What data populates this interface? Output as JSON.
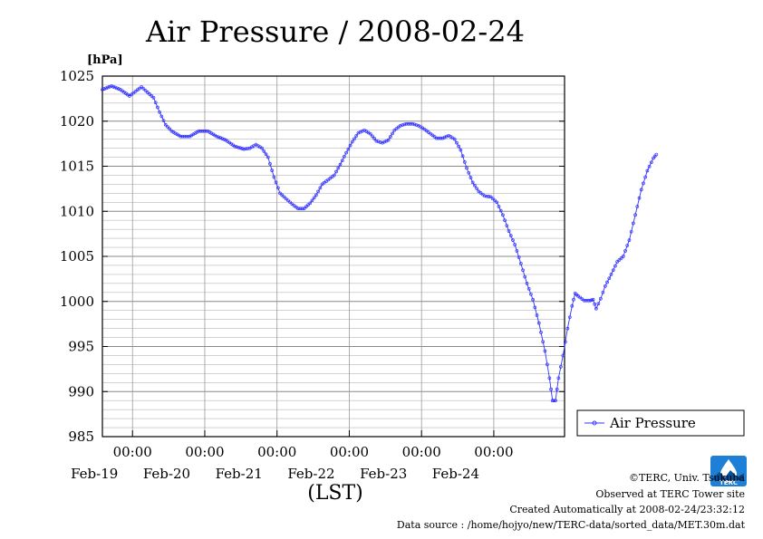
{
  "chart_data": {
    "type": "line",
    "title": "Air Pressure / 2008-02-24",
    "ylabel": "[hPa]",
    "xlabel": "(LST)",
    "ylim": [
      985,
      1025
    ],
    "y_ticks": [
      985,
      990,
      995,
      1000,
      1005,
      1010,
      1015,
      1020,
      1025
    ],
    "y_grid_step": 1,
    "grid": true,
    "x_range_days": [
      "2008-02-18T14:00",
      "2008-02-24T23:30"
    ],
    "x_ticks": [
      {
        "time": "2008-02-19T00:00",
        "hour_label": "00:00",
        "day_label": "Feb-19"
      },
      {
        "time": "2008-02-20T00:00",
        "hour_label": "00:00",
        "day_label": "Feb-20"
      },
      {
        "time": "2008-02-21T00:00",
        "hour_label": "00:00",
        "day_label": "Feb-21"
      },
      {
        "time": "2008-02-22T00:00",
        "hour_label": "00:00",
        "day_label": "Feb-22"
      },
      {
        "time": "2008-02-23T00:00",
        "hour_label": "00:00",
        "day_label": "Feb-23"
      },
      {
        "time": "2008-02-24T00:00",
        "hour_label": "00:00",
        "day_label": "Feb-24"
      }
    ],
    "legend_position": "right",
    "series": [
      {
        "name": "Air Pressure",
        "color": "#3333ff",
        "marker": "circle",
        "points": [
          [
            "2008-02-18T14:00",
            1023.5
          ],
          [
            "2008-02-18T17:00",
            1023.9
          ],
          [
            "2008-02-18T20:00",
            1023.5
          ],
          [
            "2008-02-18T23:00",
            1022.8
          ],
          [
            "2008-02-19T01:00",
            1023.3
          ],
          [
            "2008-02-19T03:00",
            1023.8
          ],
          [
            "2008-02-19T05:00",
            1023.2
          ],
          [
            "2008-02-19T07:00",
            1022.6
          ],
          [
            "2008-02-19T09:00",
            1021.0
          ],
          [
            "2008-02-19T11:00",
            1019.6
          ],
          [
            "2008-02-19T13:00",
            1018.9
          ],
          [
            "2008-02-19T16:00",
            1018.3
          ],
          [
            "2008-02-19T19:00",
            1018.3
          ],
          [
            "2008-02-19T22:00",
            1018.9
          ],
          [
            "2008-02-20T01:00",
            1018.9
          ],
          [
            "2008-02-20T04:00",
            1018.3
          ],
          [
            "2008-02-20T07:00",
            1017.9
          ],
          [
            "2008-02-20T10:00",
            1017.2
          ],
          [
            "2008-02-20T13:00",
            1016.9
          ],
          [
            "2008-02-20T15:00",
            1017.0
          ],
          [
            "2008-02-20T17:00",
            1017.4
          ],
          [
            "2008-02-20T19:00",
            1017.0
          ],
          [
            "2008-02-20T21:00",
            1016.0
          ],
          [
            "2008-02-20T23:00",
            1013.8
          ],
          [
            "2008-02-21T01:00",
            1012.0
          ],
          [
            "2008-02-21T03:00",
            1011.4
          ],
          [
            "2008-02-21T05:00",
            1010.8
          ],
          [
            "2008-02-21T07:00",
            1010.3
          ],
          [
            "2008-02-21T09:00",
            1010.3
          ],
          [
            "2008-02-21T11:00",
            1010.9
          ],
          [
            "2008-02-21T13:00",
            1011.8
          ],
          [
            "2008-02-21T15:00",
            1013.0
          ],
          [
            "2008-02-21T17:00",
            1013.5
          ],
          [
            "2008-02-21T19:00",
            1014.0
          ],
          [
            "2008-02-21T21:00",
            1015.2
          ],
          [
            "2008-02-21T23:00",
            1016.5
          ],
          [
            "2008-02-22T01:00",
            1017.7
          ],
          [
            "2008-02-22T03:00",
            1018.7
          ],
          [
            "2008-02-22T05:00",
            1019.0
          ],
          [
            "2008-02-22T07:00",
            1018.6
          ],
          [
            "2008-02-22T09:00",
            1017.8
          ],
          [
            "2008-02-22T11:00",
            1017.6
          ],
          [
            "2008-02-22T13:00",
            1017.9
          ],
          [
            "2008-02-22T15:00",
            1019.0
          ],
          [
            "2008-02-22T17:00",
            1019.5
          ],
          [
            "2008-02-22T19:00",
            1019.7
          ],
          [
            "2008-02-22T21:00",
            1019.7
          ],
          [
            "2008-02-22T23:00",
            1019.5
          ],
          [
            "2008-02-23T01:00",
            1019.1
          ],
          [
            "2008-02-23T03:00",
            1018.6
          ],
          [
            "2008-02-23T05:00",
            1018.1
          ],
          [
            "2008-02-23T07:00",
            1018.1
          ],
          [
            "2008-02-23T09:00",
            1018.4
          ],
          [
            "2008-02-23T11:00",
            1018.0
          ],
          [
            "2008-02-23T13:00",
            1016.8
          ],
          [
            "2008-02-23T15:00",
            1014.8
          ],
          [
            "2008-02-23T17:00",
            1013.2
          ],
          [
            "2008-02-23T19:00",
            1012.2
          ],
          [
            "2008-02-23T21:00",
            1011.7
          ],
          [
            "2008-02-23T23:00",
            1011.6
          ],
          [
            "2008-02-24T01:00",
            1011.0
          ],
          [
            "2008-02-24T03:00",
            1009.6
          ],
          [
            "2008-02-24T05:00",
            1007.8
          ],
          [
            "2008-02-24T07:00",
            1006.3
          ],
          [
            "2008-02-24T09:00",
            1004.2
          ],
          [
            "2008-02-24T11:00",
            1002.0
          ],
          [
            "2008-02-24T13:00",
            1000.2
          ],
          [
            "2008-02-24T15:00",
            997.6
          ],
          [
            "2008-02-24T17:00",
            994.5
          ],
          [
            "2008-02-24T18:30",
            991.5
          ],
          [
            "2008-02-24T19:30",
            989.0
          ],
          [
            "2008-02-24T20:30",
            989.0
          ],
          [
            "2008-02-24T21:30",
            991.5
          ],
          [
            "2008-02-24T23:00",
            994.0
          ],
          [
            "2008-02-25T00:30",
            997.0
          ],
          [
            "2008-02-25T02:00",
            999.5
          ],
          [
            "2008-02-25T03:00",
            1000.9
          ],
          [
            "2008-02-25T04:00",
            1000.6
          ],
          [
            "2008-02-25T06:00",
            1000.1
          ],
          [
            "2008-02-25T08:00",
            1000.1
          ],
          [
            "2008-02-25T09:00",
            1000.2
          ],
          [
            "2008-02-25T10:00",
            999.2
          ],
          [
            "2008-02-25T11:30",
            1000.3
          ],
          [
            "2008-02-25T13:00",
            1001.7
          ],
          [
            "2008-02-25T15:00",
            1003.0
          ],
          [
            "2008-02-25T17:00",
            1004.4
          ],
          [
            "2008-02-25T19:00",
            1005.0
          ],
          [
            "2008-02-25T21:00",
            1006.8
          ],
          [
            "2008-02-25T23:00",
            1009.6
          ],
          [
            "2008-02-26T01:00",
            1012.4
          ],
          [
            "2008-02-26T03:00",
            1014.5
          ],
          [
            "2008-02-26T05:00",
            1015.9
          ],
          [
            "2008-02-26T06:00",
            1016.3
          ]
        ]
      }
    ]
  },
  "credits": {
    "copyright": "©TERC, Univ. Tsukuba",
    "site": "Observed at TERC Tower site",
    "created": "Created Automatically at 2008-02-24/23:32:12",
    "source": "Data source : /home/hojyo/new/TERC-data/sorted_data/MET.30m.dat"
  },
  "logo": {
    "text": "TERC",
    "color": "#1e7fd6"
  }
}
